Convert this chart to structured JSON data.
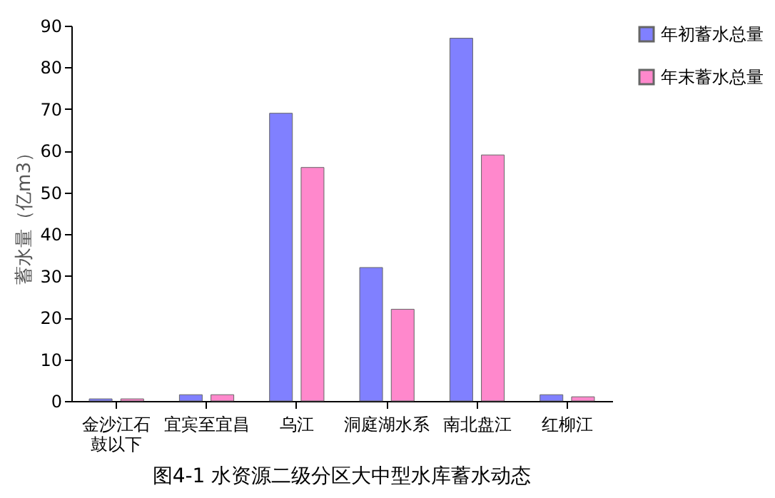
{
  "chart_data": {
    "type": "bar",
    "title": "图4-1   水资源二级分区大中型水库蓄水动态",
    "ylabel": "蓄水量（亿m3）",
    "categories": [
      "金沙江石鼓以下",
      "宜宾至宜昌",
      "乌江",
      "洞庭湖水系",
      "南北盘江",
      "红柳江"
    ],
    "series": [
      {
        "name": "年初蓄水总量",
        "color": "#8080ff",
        "values": [
          0.5,
          1.5,
          69,
          32,
          87,
          1.5
        ]
      },
      {
        "name": "年末蓄水总量",
        "color": "#ff88cc",
        "values": [
          0.5,
          1.5,
          56,
          22,
          59,
          1
        ]
      }
    ],
    "ylim": [
      0,
      90
    ],
    "yticks": [
      0,
      10,
      20,
      30,
      40,
      50,
      60,
      70,
      80,
      90
    ],
    "grid": false,
    "legend": "right"
  }
}
